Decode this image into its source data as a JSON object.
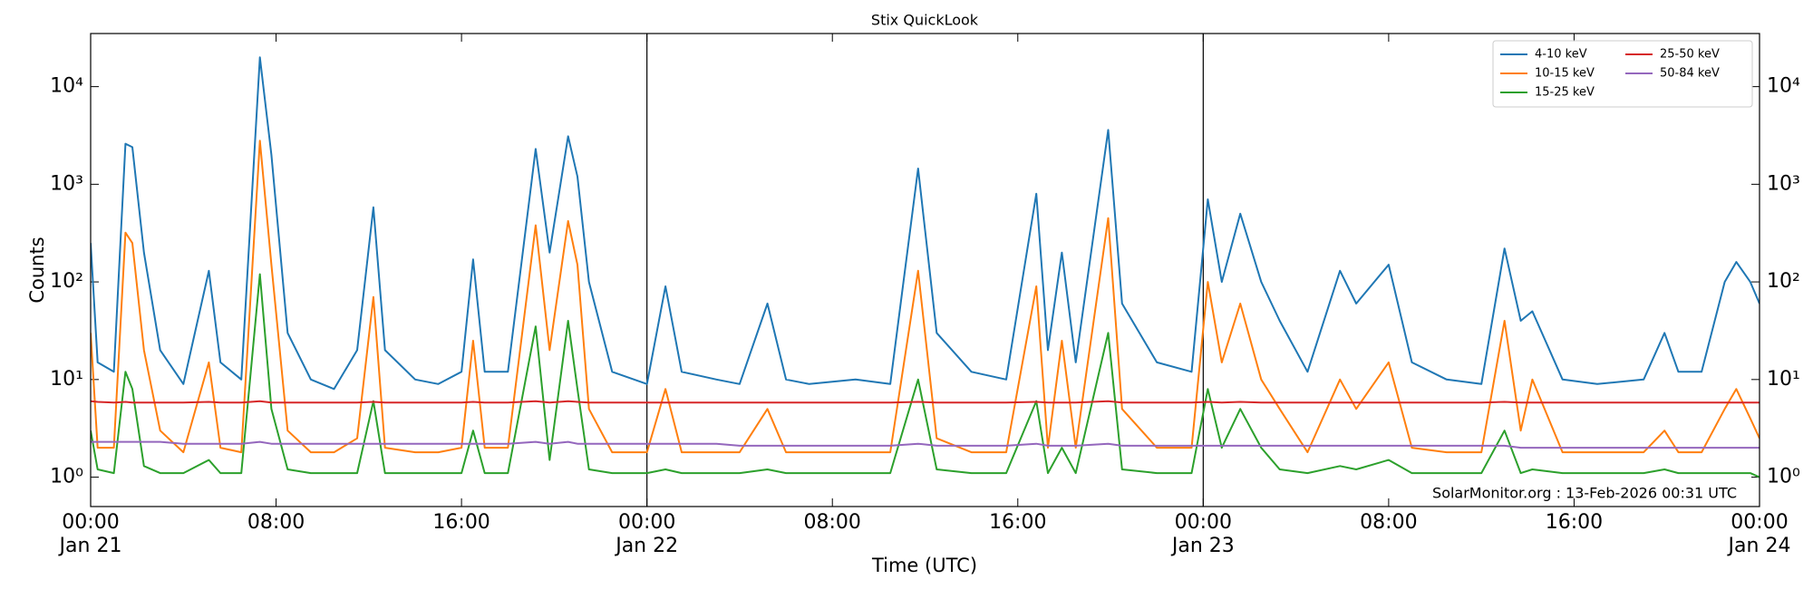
{
  "chart_data": {
    "type": "line",
    "title": "Stix QuickLook",
    "xlabel": "Time (UTC)",
    "ylabel": "Counts",
    "log_y": true,
    "legend": "upper right",
    "legend_columns": 2,
    "annotation": "SolarMonitor.org : 13-Feb-2026 00:31 UTC",
    "xlim": [
      0,
      72
    ],
    "xticks": [
      {
        "value": 0,
        "label": "00:00\nJan 21"
      },
      {
        "value": 8,
        "label": "08:00"
      },
      {
        "value": 16,
        "label": "16:00"
      },
      {
        "value": 24,
        "label": "00:00\nJan 22"
      },
      {
        "value": 32,
        "label": "08:00"
      },
      {
        "value": 40,
        "label": "16:00"
      },
      {
        "value": 48,
        "label": "00:00\nJan 23"
      },
      {
        "value": 56,
        "label": "08:00"
      },
      {
        "value": 64,
        "label": "16:00"
      },
      {
        "value": 72,
        "label": "00:00\nJan 24"
      }
    ],
    "vlines": [
      24,
      48
    ],
    "ylim": [
      0.5,
      35000
    ],
    "yticks": [
      {
        "value": 1,
        "label": "10⁰"
      },
      {
        "value": 10,
        "label": "10¹"
      },
      {
        "value": 100,
        "label": "10²"
      },
      {
        "value": 1000,
        "label": "10³"
      },
      {
        "value": 10000,
        "label": "10⁴"
      }
    ],
    "x": [
      0,
      0.3,
      1,
      1.5,
      1.8,
      2.3,
      3,
      4,
      5.1,
      5.6,
      6.5,
      7.3,
      7.8,
      8.5,
      9.5,
      10.5,
      11.5,
      12.2,
      12.7,
      14,
      15,
      16,
      16.5,
      17,
      18,
      19.2,
      19.8,
      20.6,
      21,
      21.5,
      22.5,
      24,
      24.8,
      25.5,
      27,
      28,
      29.2,
      30,
      31,
      33,
      34.5,
      35.7,
      36.5,
      38,
      39.5,
      40.8,
      41.3,
      41.9,
      42.5,
      43.9,
      44.5,
      46,
      47.5,
      48.2,
      48.8,
      49.6,
      50.5,
      51.3,
      52.5,
      53.9,
      54.6,
      56,
      57,
      58.5,
      60,
      61,
      61.7,
      62.2,
      63.5,
      65,
      67,
      67.9,
      68.5,
      69.5,
      70.5,
      71,
      71.6,
      72
    ],
    "series": [
      {
        "name": "4-10 keV",
        "color": "#1f77b4",
        "values": [
          250,
          15,
          12,
          2600,
          2400,
          200,
          20,
          9,
          130,
          15,
          10,
          20000,
          2000,
          30,
          10,
          8,
          20,
          580,
          20,
          10,
          9,
          12,
          170,
          12,
          12,
          2300,
          200,
          3100,
          1200,
          100,
          12,
          9,
          90,
          12,
          10,
          9,
          60,
          10,
          9,
          10,
          9,
          1450,
          30,
          12,
          10,
          800,
          20,
          200,
          15,
          3600,
          60,
          15,
          12,
          700,
          100,
          500,
          100,
          40,
          12,
          130,
          60,
          150,
          15,
          10,
          9,
          220,
          40,
          50,
          10,
          9,
          10,
          30,
          12,
          12,
          100,
          160,
          100,
          60
        ]
      },
      {
        "name": "10-15 keV",
        "color": "#ff7f0e",
        "values": [
          30,
          2,
          2,
          320,
          250,
          20,
          3,
          1.8,
          15,
          2,
          1.8,
          2800,
          150,
          3,
          1.8,
          1.8,
          2.5,
          70,
          2,
          1.8,
          1.8,
          2,
          25,
          2,
          2,
          380,
          20,
          420,
          150,
          5,
          1.8,
          1.8,
          8,
          1.8,
          1.8,
          1.8,
          5,
          1.8,
          1.8,
          1.8,
          1.8,
          130,
          2.5,
          1.8,
          1.8,
          90,
          2,
          25,
          2,
          450,
          5,
          2,
          2,
          100,
          15,
          60,
          10,
          5,
          1.8,
          10,
          5,
          15,
          2,
          1.8,
          1.8,
          40,
          3,
          10,
          1.8,
          1.8,
          1.8,
          3,
          1.8,
          1.8,
          5,
          8,
          4,
          2.5
        ]
      },
      {
        "name": "15-25 keV",
        "color": "#2ca02c",
        "values": [
          3,
          1.2,
          1.1,
          12,
          8,
          1.3,
          1.1,
          1.1,
          1.5,
          1.1,
          1.1,
          120,
          5,
          1.2,
          1.1,
          1.1,
          1.1,
          6,
          1.1,
          1.1,
          1.1,
          1.1,
          3,
          1.1,
          1.1,
          35,
          1.5,
          40,
          8,
          1.2,
          1.1,
          1.1,
          1.2,
          1.1,
          1.1,
          1.1,
          1.2,
          1.1,
          1.1,
          1.1,
          1.1,
          10,
          1.2,
          1.1,
          1.1,
          6,
          1.1,
          2,
          1.1,
          30,
          1.2,
          1.1,
          1.1,
          8,
          2,
          5,
          2,
          1.2,
          1.1,
          1.3,
          1.2,
          1.5,
          1.1,
          1.1,
          1.1,
          3,
          1.1,
          1.2,
          1.1,
          1.1,
          1.1,
          1.2,
          1.1,
          1.1,
          1.1,
          1.1,
          1.1,
          1.0
        ]
      },
      {
        "name": "25-50 keV",
        "color": "#d62728",
        "values": [
          6,
          5.9,
          5.8,
          5.9,
          5.8,
          5.8,
          5.8,
          5.8,
          5.9,
          5.8,
          5.8,
          6,
          5.8,
          5.8,
          5.8,
          5.8,
          5.8,
          5.9,
          5.8,
          5.8,
          5.8,
          5.8,
          5.9,
          5.8,
          5.8,
          6,
          5.8,
          6,
          5.9,
          5.8,
          5.8,
          5.8,
          5.8,
          5.8,
          5.8,
          5.8,
          5.8,
          5.8,
          5.8,
          5.8,
          5.8,
          5.9,
          5.8,
          5.8,
          5.8,
          5.9,
          5.8,
          5.8,
          5.8,
          6,
          5.8,
          5.8,
          5.8,
          5.9,
          5.8,
          5.9,
          5.8,
          5.8,
          5.8,
          5.8,
          5.8,
          5.8,
          5.8,
          5.8,
          5.8,
          5.9,
          5.8,
          5.8,
          5.8,
          5.8,
          5.8,
          5.8,
          5.8,
          5.8,
          5.8,
          5.8,
          5.8,
          5.8
        ]
      },
      {
        "name": "50-84 keV",
        "color": "#9467bd",
        "values": [
          2.3,
          2.3,
          2.3,
          2.3,
          2.3,
          2.3,
          2.3,
          2.2,
          2.2,
          2.2,
          2.2,
          2.3,
          2.2,
          2.2,
          2.2,
          2.2,
          2.2,
          2.2,
          2.2,
          2.2,
          2.2,
          2.2,
          2.2,
          2.2,
          2.2,
          2.3,
          2.2,
          2.3,
          2.2,
          2.2,
          2.2,
          2.2,
          2.2,
          2.2,
          2.2,
          2.1,
          2.1,
          2.1,
          2.1,
          2.1,
          2.1,
          2.2,
          2.1,
          2.1,
          2.1,
          2.2,
          2.1,
          2.1,
          2.1,
          2.2,
          2.1,
          2.1,
          2.1,
          2.1,
          2.1,
          2.1,
          2.1,
          2.1,
          2.1,
          2.1,
          2.1,
          2.1,
          2.1,
          2.1,
          2.1,
          2.1,
          2.0,
          2.0,
          2.0,
          2.0,
          2.0,
          2.0,
          2.0,
          2.0,
          2.0,
          2.0,
          2.0,
          2.0
        ]
      }
    ]
  }
}
